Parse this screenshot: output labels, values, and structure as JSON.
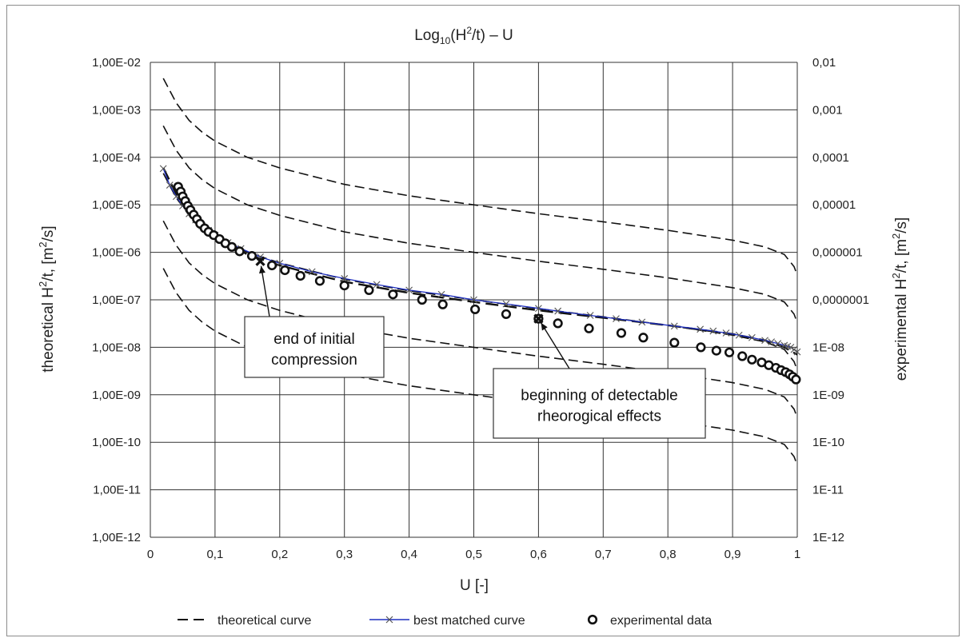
{
  "chart_data": {
    "type": "scatter",
    "title": {
      "main": "Log",
      "sub": "10",
      "mid": "(H",
      "sup": "2",
      "end": "/t) – U"
    },
    "xlabel": "U [-]",
    "ylabel_left": {
      "pre": "theoretical H",
      "sup1": "2",
      "mid": "/t, [m",
      "sup2": "2",
      "end": "/s]"
    },
    "ylabel_right": {
      "pre": "experimental H",
      "sup1": "2",
      "mid": "/t, [m",
      "sup2": "2",
      "end": "/s]"
    },
    "xlim": [
      0,
      1
    ],
    "ylim_log10": [
      -12,
      -2
    ],
    "log_scale_y": true,
    "grid": true,
    "x_ticks": [
      "0",
      "0,1",
      "0,2",
      "0,3",
      "0,4",
      "0,5",
      "0,6",
      "0,7",
      "0,8",
      "0,9",
      "1"
    ],
    "y_ticks_left": [
      "1,00E-02",
      "1,00E-03",
      "1,00E-04",
      "1,00E-05",
      "1,00E-06",
      "1,00E-07",
      "1,00E-08",
      "1,00E-09",
      "1,00E-10",
      "1,00E-11",
      "1,00E-12"
    ],
    "y_ticks_right": [
      "0,01",
      "0,001",
      "0,0001",
      "0,00001",
      "0,000001",
      "0,0000001",
      "1E-08",
      "1E-09",
      "1E-10",
      "1E-11",
      "1E-12"
    ],
    "legend": {
      "placement": "bottom",
      "items": [
        {
          "label": "theoretical curve",
          "style": "dashed"
        },
        {
          "label": "best matched curve",
          "style": "line-x"
        },
        {
          "label": "experimental data",
          "style": "circle"
        }
      ]
    },
    "colors": {
      "theoretical": "#111111",
      "best_match": "#1f2fbf",
      "experimental": "#111111",
      "grid": "#333333"
    },
    "theoretical_curves": [
      {
        "points": [
          [
            0.02,
            0.0046
          ],
          [
            0.04,
            0.0014
          ],
          [
            0.06,
            0.0006
          ],
          [
            0.08,
            0.00034
          ],
          [
            0.1,
            0.00022
          ],
          [
            0.15,
            0.0001
          ],
          [
            0.2,
            6e-05
          ],
          [
            0.3,
            2.7e-05
          ],
          [
            0.4,
            1.55e-05
          ],
          [
            0.5,
            1e-05
          ],
          [
            0.6,
            6.5e-06
          ],
          [
            0.7,
            4.4e-06
          ],
          [
            0.8,
            2.9e-06
          ],
          [
            0.9,
            1.8e-06
          ],
          [
            0.95,
            1.3e-06
          ],
          [
            0.98,
            9e-07
          ],
          [
            0.995,
            5e-07
          ],
          [
            1.0,
            3.3e-07
          ]
        ]
      },
      {
        "points": [
          [
            0.02,
            0.00046
          ],
          [
            0.04,
            0.00014
          ],
          [
            0.06,
            6e-05
          ],
          [
            0.08,
            3.4e-05
          ],
          [
            0.1,
            2.2e-05
          ],
          [
            0.15,
            1e-05
          ],
          [
            0.2,
            6e-06
          ],
          [
            0.3,
            2.7e-06
          ],
          [
            0.4,
            1.55e-06
          ],
          [
            0.5,
            1e-06
          ],
          [
            0.6,
            6.5e-07
          ],
          [
            0.7,
            4.4e-07
          ],
          [
            0.8,
            2.9e-07
          ],
          [
            0.9,
            1.8e-07
          ],
          [
            0.95,
            1.3e-07
          ],
          [
            0.98,
            9e-08
          ],
          [
            0.995,
            5e-08
          ],
          [
            1.0,
            3.3e-08
          ]
        ]
      },
      {
        "points": [
          [
            0.02,
            4.6e-05
          ],
          [
            0.04,
            1.4e-05
          ],
          [
            0.06,
            6e-06
          ],
          [
            0.08,
            3.4e-06
          ],
          [
            0.1,
            2.2e-06
          ],
          [
            0.15,
            1e-06
          ],
          [
            0.2,
            6e-07
          ],
          [
            0.3,
            2.7e-07
          ],
          [
            0.4,
            1.55e-07
          ],
          [
            0.5,
            1e-07
          ],
          [
            0.6,
            6.5e-08
          ],
          [
            0.7,
            4.4e-08
          ],
          [
            0.8,
            2.9e-08
          ],
          [
            0.9,
            1.8e-08
          ],
          [
            0.95,
            1.3e-08
          ],
          [
            0.98,
            9e-09
          ],
          [
            0.995,
            5e-09
          ],
          [
            1.0,
            3.3e-09
          ]
        ]
      },
      {
        "points": [
          [
            0.02,
            4.6e-06
          ],
          [
            0.04,
            1.4e-06
          ],
          [
            0.06,
            6e-07
          ],
          [
            0.08,
            3.4e-07
          ],
          [
            0.1,
            2.2e-07
          ],
          [
            0.15,
            1e-07
          ],
          [
            0.2,
            6e-08
          ],
          [
            0.3,
            2.7e-08
          ],
          [
            0.4,
            1.55e-08
          ],
          [
            0.5,
            1e-08
          ],
          [
            0.6,
            6.5e-09
          ],
          [
            0.7,
            4.4e-09
          ],
          [
            0.8,
            2.9e-09
          ],
          [
            0.9,
            1.8e-09
          ],
          [
            0.95,
            1.3e-09
          ],
          [
            0.98,
            9e-10
          ],
          [
            0.995,
            5e-10
          ],
          [
            1.0,
            3.3e-10
          ]
        ]
      },
      {
        "points": [
          [
            0.02,
            4.6e-07
          ],
          [
            0.04,
            1.4e-07
          ],
          [
            0.06,
            6e-08
          ],
          [
            0.08,
            3.4e-08
          ],
          [
            0.1,
            2.2e-08
          ],
          [
            0.15,
            1e-08
          ],
          [
            0.2,
            6e-09
          ],
          [
            0.3,
            2.7e-09
          ],
          [
            0.4,
            1.55e-09
          ],
          [
            0.5,
            1e-09
          ],
          [
            0.6,
            6.5e-10
          ],
          [
            0.7,
            4.4e-10
          ],
          [
            0.8,
            2.9e-10
          ],
          [
            0.9,
            1.8e-10
          ],
          [
            0.95,
            1.3e-10
          ],
          [
            0.98,
            9e-11
          ],
          [
            0.995,
            5e-11
          ],
          [
            1.0,
            3.3e-11
          ]
        ]
      },
      {
        "points": [
          [
            0.02,
            6e-05
          ],
          [
            0.04,
            1.7e-05
          ],
          [
            0.06,
            7e-06
          ],
          [
            0.08,
            3.5e-06
          ],
          [
            0.1,
            2.2e-06
          ],
          [
            0.15,
            9e-07
          ],
          [
            0.2,
            5.3e-07
          ],
          [
            0.3,
            2.4e-07
          ],
          [
            0.4,
            1.4e-07
          ],
          [
            0.5,
            9e-08
          ],
          [
            0.6,
            6e-08
          ],
          [
            0.7,
            4.2e-08
          ],
          [
            0.8,
            2.9e-08
          ],
          [
            0.9,
            1.9e-08
          ],
          [
            0.95,
            1.4e-08
          ],
          [
            0.98,
            1e-08
          ],
          [
            1.0,
            7e-09
          ]
        ]
      }
    ],
    "best_matched_curve": {
      "points": [
        [
          0.02,
          5.8e-05
        ],
        [
          0.03,
          2.6e-05
        ],
        [
          0.04,
          1.5e-05
        ],
        [
          0.05,
          9.5e-06
        ],
        [
          0.06,
          6.5e-06
        ],
        [
          0.07,
          4.8e-06
        ],
        [
          0.08,
          3.6e-06
        ],
        [
          0.09,
          2.9e-06
        ],
        [
          0.1,
          2.3e-06
        ],
        [
          0.12,
          1.6e-06
        ],
        [
          0.14,
          1.2e-06
        ],
        [
          0.17,
          8e-07
        ],
        [
          0.2,
          5.9e-07
        ],
        [
          0.25,
          3.9e-07
        ],
        [
          0.3,
          2.8e-07
        ],
        [
          0.35,
          2.1e-07
        ],
        [
          0.4,
          1.6e-07
        ],
        [
          0.45,
          1.3e-07
        ],
        [
          0.5,
          1e-07
        ],
        [
          0.55,
          8.2e-08
        ],
        [
          0.6,
          6.6e-08
        ],
        [
          0.63,
          5.8e-08
        ],
        [
          0.68,
          4.7e-08
        ],
        [
          0.72,
          4e-08
        ],
        [
          0.76,
          3.4e-08
        ],
        [
          0.81,
          2.8e-08
        ],
        [
          0.85,
          2.4e-08
        ],
        [
          0.87,
          2.2e-08
        ],
        [
          0.89,
          2e-08
        ],
        [
          0.91,
          1.8e-08
        ],
        [
          0.93,
          1.6e-08
        ],
        [
          0.95,
          1.4e-08
        ],
        [
          0.96,
          1.3e-08
        ],
        [
          0.97,
          1.2e-08
        ],
        [
          0.98,
          1.1e-08
        ],
        [
          0.985,
          1.05e-08
        ],
        [
          0.99,
          1e-08
        ],
        [
          0.995,
          9e-09
        ],
        [
          1.0,
          8e-09
        ]
      ]
    },
    "experimental_data": {
      "points": [
        [
          0.043,
          2.4e-05
        ],
        [
          0.047,
          1.9e-05
        ],
        [
          0.05,
          1.5e-05
        ],
        [
          0.054,
          1.2e-05
        ],
        [
          0.058,
          9.5e-06
        ],
        [
          0.062,
          7.8e-06
        ],
        [
          0.067,
          6.2e-06
        ],
        [
          0.072,
          5e-06
        ],
        [
          0.077,
          4e-06
        ],
        [
          0.084,
          3.2e-06
        ],
        [
          0.09,
          2.7e-06
        ],
        [
          0.098,
          2.3e-06
        ],
        [
          0.107,
          1.9e-06
        ],
        [
          0.116,
          1.55e-06
        ],
        [
          0.126,
          1.3e-06
        ],
        [
          0.138,
          1.05e-06
        ],
        [
          0.157,
          8.4e-07
        ],
        [
          0.188,
          5.3e-07
        ],
        [
          0.208,
          4.2e-07
        ],
        [
          0.232,
          3.2e-07
        ],
        [
          0.262,
          2.5e-07
        ],
        [
          0.3,
          2e-07
        ],
        [
          0.338,
          1.6e-07
        ],
        [
          0.375,
          1.3e-07
        ],
        [
          0.42,
          1e-07
        ],
        [
          0.452,
          8e-08
        ],
        [
          0.502,
          6.3e-08
        ],
        [
          0.55,
          5e-08
        ],
        [
          0.6,
          4e-08
        ],
        [
          0.63,
          3.2e-08
        ],
        [
          0.678,
          2.5e-08
        ],
        [
          0.728,
          2e-08
        ],
        [
          0.762,
          1.6e-08
        ],
        [
          0.81,
          1.25e-08
        ],
        [
          0.851,
          1e-08
        ],
        [
          0.875,
          8.5e-09
        ],
        [
          0.895,
          7.8e-09
        ],
        [
          0.915,
          6.5e-09
        ],
        [
          0.93,
          5.5e-09
        ],
        [
          0.945,
          4.8e-09
        ],
        [
          0.956,
          4.2e-09
        ],
        [
          0.967,
          3.7e-09
        ],
        [
          0.975,
          3.3e-09
        ],
        [
          0.982,
          3e-09
        ],
        [
          0.988,
          2.7e-09
        ],
        [
          0.993,
          2.4e-09
        ],
        [
          0.998,
          2.1e-09
        ]
      ]
    },
    "marked_points": [
      {
        "x": 0.17,
        "y": 6.5e-07
      },
      {
        "x": 0.6,
        "y": 4e-08
      }
    ],
    "annotations": [
      {
        "lines": [
          "end of initial",
          "compression"
        ],
        "target": [
          0.17,
          6.5e-07
        ]
      },
      {
        "lines": [
          "beginning of detectable",
          "rheorogical effects"
        ],
        "target": [
          0.6,
          4e-08
        ]
      }
    ]
  }
}
